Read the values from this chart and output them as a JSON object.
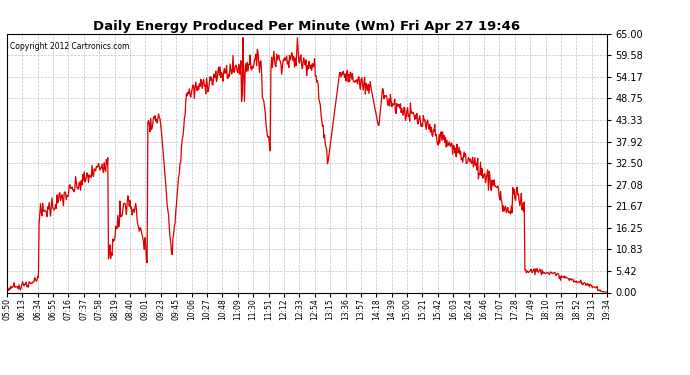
{
  "title": "Daily Energy Produced Per Minute (Wm) Fri Apr 27 19:46",
  "copyright": "Copyright 2012 Cartronics.com",
  "line_color": "#dd0000",
  "background_color": "#ffffff",
  "grid_color": "#bbbbbb",
  "ymin": 0.0,
  "ymax": 65.0,
  "yticks": [
    0.0,
    5.42,
    10.83,
    16.25,
    21.67,
    27.08,
    32.5,
    37.92,
    43.33,
    48.75,
    54.17,
    59.58,
    65.0
  ],
  "xtick_labels": [
    "05:50",
    "06:13",
    "06:34",
    "06:55",
    "07:16",
    "07:37",
    "07:58",
    "08:19",
    "08:40",
    "09:01",
    "09:23",
    "09:45",
    "10:06",
    "10:27",
    "10:48",
    "11:09",
    "11:30",
    "11:51",
    "12:12",
    "12:33",
    "12:54",
    "13:15",
    "13:36",
    "13:57",
    "14:18",
    "14:39",
    "15:00",
    "15:21",
    "15:42",
    "16:03",
    "16:24",
    "16:46",
    "17:07",
    "17:28",
    "17:49",
    "18:10",
    "18:31",
    "18:52",
    "19:13",
    "19:34"
  ],
  "n_points": 840,
  "line_width": 0.9
}
